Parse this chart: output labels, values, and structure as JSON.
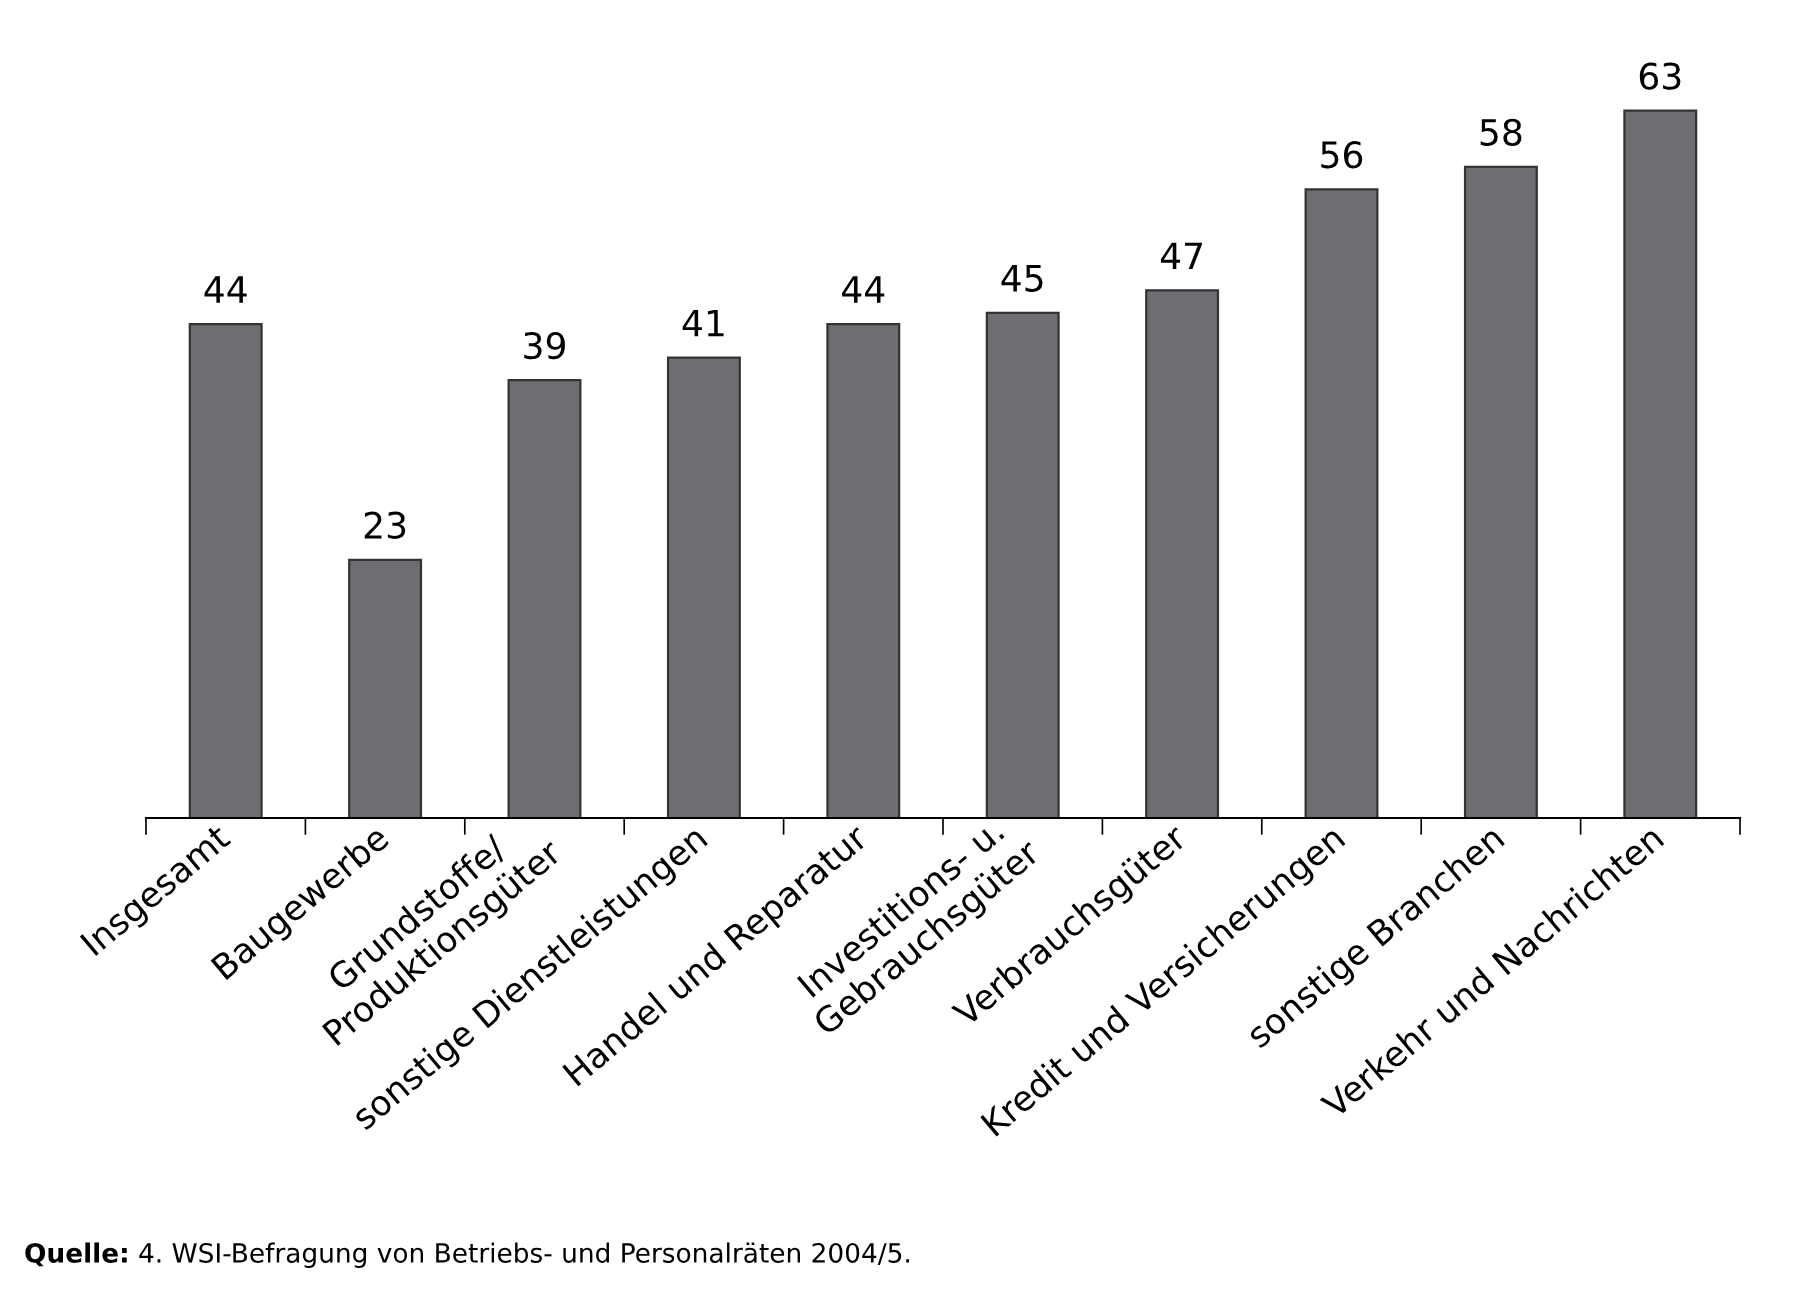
{
  "chart_data": {
    "type": "bar",
    "categories": [
      "Insgesamt",
      "Baugewerbe",
      "Grundstoffe/\nProduktionsgüter",
      "sonstige Dienstleistungen",
      "Handel und Reparatur",
      "Investitions- u.\nGebrauchsgüter",
      "Verbrauchsgüter",
      "Kredit und Versicherungen",
      "sonstige Branchen",
      "Verkehr und Nachrichten"
    ],
    "values": [
      44,
      23,
      39,
      41,
      44,
      45,
      47,
      56,
      58,
      63
    ],
    "color": "#6d6e71",
    "data_labels": true,
    "grid": false,
    "legend": false,
    "annotations": [
      "Quelle: 4. WSI-Befragung von Betriebs- und Personalräten 2004/5."
    ]
  }
}
